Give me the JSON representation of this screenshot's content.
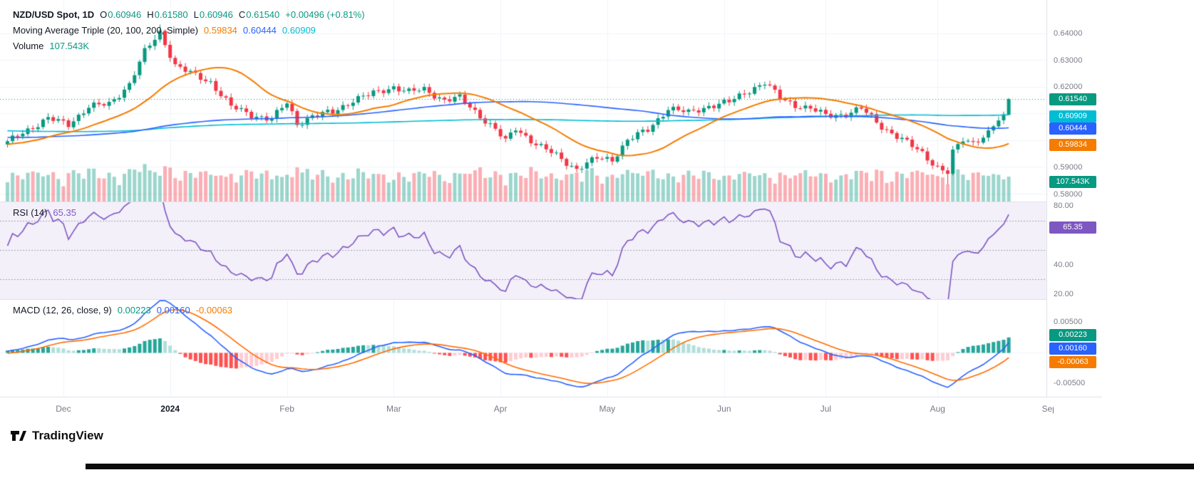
{
  "header": {
    "symbol_line": {
      "title": "NZD/USD Spot, 1D",
      "ohlc": [
        {
          "label": "O",
          "value": "0.60946"
        },
        {
          "label": "H",
          "value": "0.61580"
        },
        {
          "label": "L",
          "value": "0.60946"
        },
        {
          "label": "C",
          "value": "0.61540"
        }
      ],
      "change": "+0.00496 (+0.81%)"
    },
    "ma_line": {
      "title": "Moving Average Triple (20, 100, 200, Simple)",
      "values": [
        {
          "value": "0.59834",
          "color": "#f57c00"
        },
        {
          "value": "0.60444",
          "color": "#2962ff"
        },
        {
          "value": "0.60909",
          "color": "#00bcd4"
        }
      ]
    },
    "volume_line": {
      "title": "Volume",
      "value": "107.543K",
      "color": "#089981"
    }
  },
  "rsi_legend": {
    "title": "RSI (14)",
    "value": "65.35",
    "color": "#7e57c2"
  },
  "macd_legend": {
    "title": "MACD (12, 26, close, 9)",
    "values": [
      {
        "value": "0.00223",
        "color": "#089981"
      },
      {
        "value": "0.00160",
        "color": "#2962ff"
      },
      {
        "value": "-0.00063",
        "color": "#f57c00"
      }
    ]
  },
  "price_axis": {
    "ticks": [
      "0.64000",
      "0.63000",
      "0.62000",
      "0.59000",
      "0.58000"
    ],
    "badges": [
      {
        "text": "0.61540",
        "color": "#089981"
      },
      {
        "text": "0.60909",
        "color": "#00bcd4"
      },
      {
        "text": "0.60444",
        "color": "#2962ff"
      },
      {
        "text": "0.59834",
        "color": "#f57c00"
      }
    ],
    "volume_badge": {
      "text": "107.543K",
      "color": "#089981"
    }
  },
  "rsi_axis": {
    "ticks": [
      "80.00",
      "40.00",
      "20.00"
    ],
    "badge": {
      "text": "65.35",
      "color": "#7e57c2"
    }
  },
  "macd_axis": {
    "ticks": [
      "0.00500",
      "-0.00500"
    ],
    "badges": [
      {
        "text": "0.00223",
        "color": "#089981"
      },
      {
        "text": "0.00160",
        "color": "#2962ff"
      },
      {
        "text": "-0.00063",
        "color": "#f57c00"
      }
    ]
  },
  "footer": {
    "logo_text": "TradingView"
  },
  "chart_data": [
    {
      "type": "candlestick",
      "title": "NZD/USD Spot",
      "timeframe": "1D",
      "n_candles": 198,
      "last_candle": {
        "open": 0.60946,
        "high": 0.6158,
        "low": 0.60946,
        "close": 0.6154,
        "change": 0.00496,
        "change_pct": 0.81
      },
      "close_keypoints": [
        [
          0,
          0.599
        ],
        [
          3,
          0.603
        ],
        [
          8,
          0.608
        ],
        [
          12,
          0.606
        ],
        [
          16,
          0.6125
        ],
        [
          20,
          0.6135
        ],
        [
          24,
          0.621
        ],
        [
          27,
          0.633
        ],
        [
          30,
          0.6405
        ],
        [
          33,
          0.628
        ],
        [
          36,
          0.625
        ],
        [
          40,
          0.6218
        ],
        [
          44,
          0.6125
        ],
        [
          48,
          0.6095
        ],
        [
          52,
          0.6078
        ],
        [
          55,
          0.614
        ],
        [
          57,
          0.6062
        ],
        [
          60,
          0.609
        ],
        [
          64,
          0.6105
        ],
        [
          68,
          0.615
        ],
        [
          72,
          0.6175
        ],
        [
          76,
          0.62
        ],
        [
          79,
          0.618
        ],
        [
          82,
          0.619
        ],
        [
          86,
          0.615
        ],
        [
          89,
          0.6158
        ],
        [
          92,
          0.6108
        ],
        [
          96,
          0.604
        ],
        [
          98,
          0.5995
        ],
        [
          100,
          0.6045
        ],
        [
          104,
          0.5985
        ],
        [
          108,
          0.5942
        ],
        [
          112,
          0.5892
        ],
        [
          116,
          0.5932
        ],
        [
          119,
          0.5928
        ],
        [
          122,
          0.6
        ],
        [
          126,
          0.6038
        ],
        [
          130,
          0.612
        ],
        [
          134,
          0.6102
        ],
        [
          138,
          0.6128
        ],
        [
          142,
          0.6142
        ],
        [
          146,
          0.6188
        ],
        [
          149,
          0.6215
        ],
        [
          152,
          0.6158
        ],
        [
          155,
          0.6132
        ],
        [
          158,
          0.6118
        ],
        [
          161,
          0.6092
        ],
        [
          165,
          0.6098
        ],
        [
          168,
          0.6118
        ],
        [
          172,
          0.6052
        ],
        [
          176,
          0.6002
        ],
        [
          180,
          0.5952
        ],
        [
          183,
          0.5898
        ],
        [
          185,
          0.5878
        ],
        [
          186,
          0.5952
        ],
        [
          188,
          0.6002
        ],
        [
          190,
          0.5992
        ],
        [
          192,
          0.6012
        ],
        [
          194,
          0.6052
        ],
        [
          196,
          0.6095
        ],
        [
          197,
          0.6154
        ]
      ],
      "ylim": [
        0.577,
        0.6525
      ],
      "y_ticks": [
        0.64,
        0.63,
        0.62,
        0.59,
        0.58
      ],
      "last_price_line": 0.6154,
      "up_color": "#089981",
      "down_color": "#f23645",
      "overlays": [
        {
          "name": "SMA",
          "period": 20,
          "color": "#f57c00",
          "last_value": 0.59834
        },
        {
          "name": "SMA",
          "period": 100,
          "color": "#2962ff",
          "last_value": 0.60444
        },
        {
          "name": "SMA",
          "period": 200,
          "color": "#00bcd4",
          "last_value": 0.60909
        }
      ],
      "volume": {
        "last_label": "107.543K",
        "last_value": 107.543,
        "up_color": "rgba(8,153,129,0.4)",
        "down_color": "rgba(242,54,69,0.4)"
      },
      "months": [
        {
          "label": "Dec",
          "index": 11,
          "emphasis": false
        },
        {
          "label": "2024",
          "index": 32,
          "emphasis": true
        },
        {
          "label": "Feb",
          "index": 55,
          "emphasis": false
        },
        {
          "label": "Mar",
          "index": 76,
          "emphasis": false
        },
        {
          "label": "Apr",
          "index": 97,
          "emphasis": false
        },
        {
          "label": "May",
          "index": 118,
          "emphasis": false
        },
        {
          "label": "Jun",
          "index": 141,
          "emphasis": false
        },
        {
          "label": "Jul",
          "index": 161,
          "emphasis": false
        },
        {
          "label": "Aug",
          "index": 183,
          "emphasis": false
        },
        {
          "label": "Sep",
          "index": 205,
          "emphasis": false
        }
      ]
    },
    {
      "type": "line",
      "name": "RSI",
      "period": 14,
      "last_value": 65.35,
      "color": "#7e57c2",
      "levels": [
        70,
        50,
        30
      ],
      "band": [
        30,
        70
      ],
      "bg_color": "#f4f0fa",
      "ylim": [
        16.6,
        83
      ],
      "y_ticks": [
        80,
        40,
        20
      ]
    },
    {
      "type": "macd",
      "params": [
        12,
        26,
        "close",
        9
      ],
      "last": {
        "histogram": 0.00223,
        "macd": 0.0016,
        "signal": -0.00063
      },
      "colors": {
        "macd": "#2962ff",
        "signal": "#ff6d00",
        "hist_up": "#26a69a",
        "hist_up_fade": "#b2dfdb",
        "hist_down": "#ff5252",
        "hist_down_fade": "#ffcdd2"
      },
      "ylim": [
        -0.0072,
        0.0087
      ],
      "y_ticks": [
        0.005,
        -0.005
      ]
    }
  ]
}
